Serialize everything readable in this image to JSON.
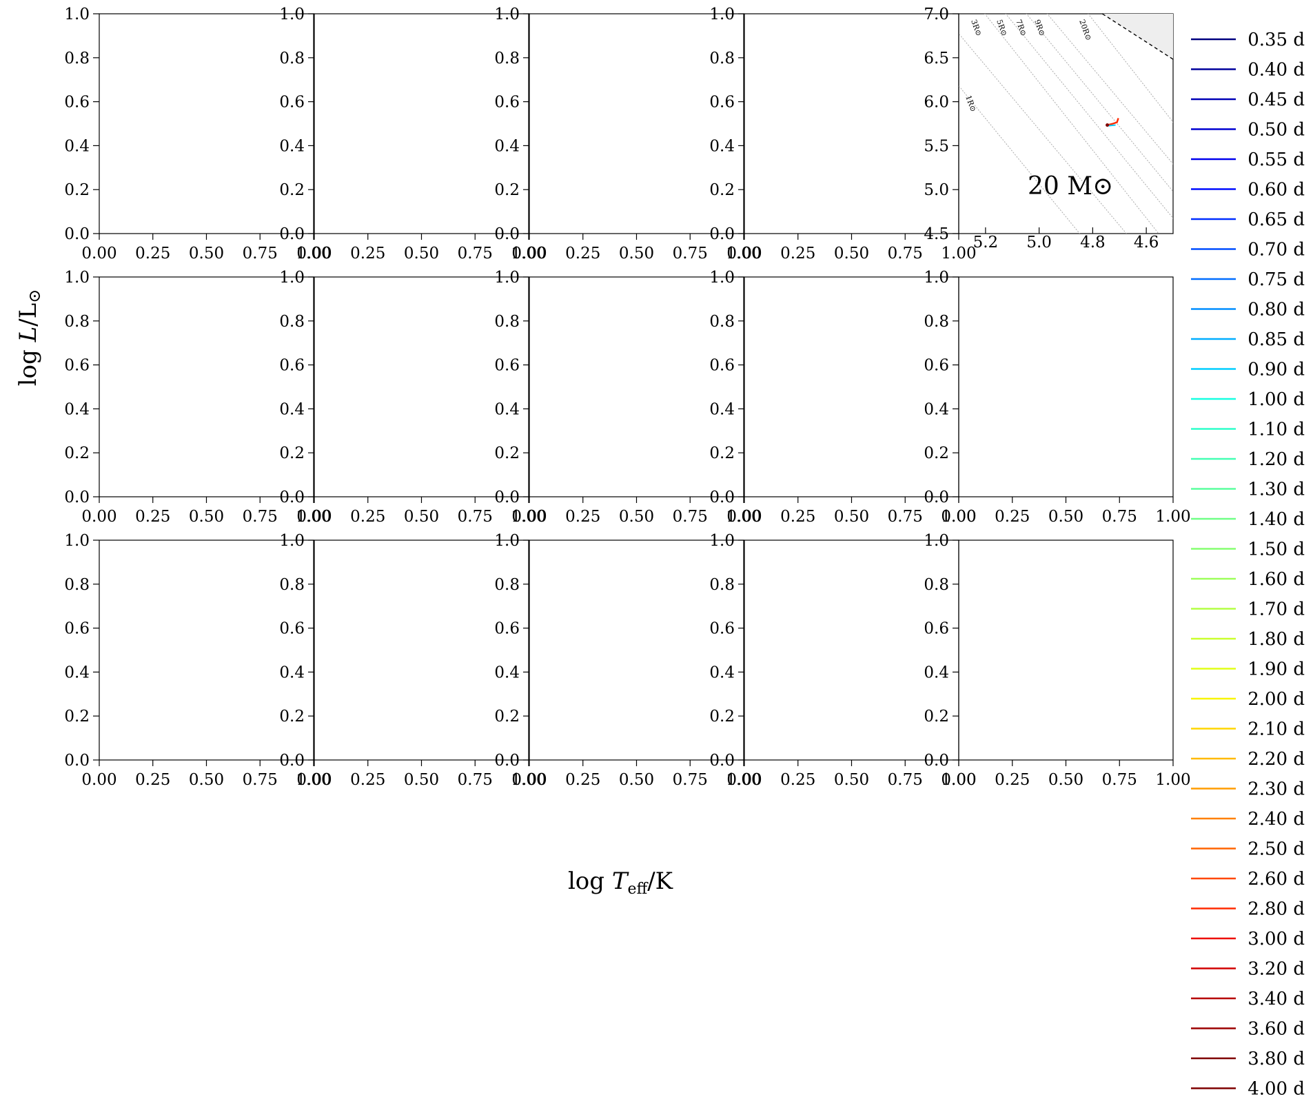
{
  "chart_data": {
    "type": "line",
    "xlabel": "log T_eff/K",
    "ylabel": "log L/L⊙",
    "legend": {
      "placement": "right",
      "entries": [
        "0.35 d",
        "0.40 d",
        "0.45 d",
        "0.50 d",
        "0.55 d",
        "0.60 d",
        "0.65 d",
        "0.70 d",
        "0.75 d",
        "0.80 d",
        "0.85 d",
        "0.90 d",
        "1.00 d",
        "1.10 d",
        "1.20 d",
        "1.30 d",
        "1.40 d",
        "1.50 d",
        "1.60 d",
        "1.70 d",
        "1.80 d",
        "1.90 d",
        "2.00 d",
        "2.10 d",
        "2.20 d",
        "2.30 d",
        "2.40 d",
        "2.50 d",
        "2.60 d",
        "2.80 d",
        "3.00 d",
        "3.20 d",
        "3.40 d",
        "3.60 d",
        "3.80 d",
        "4.00 d"
      ],
      "colors": [
        "#00007f",
        "#00009b",
        "#0000b6",
        "#0000d1",
        "#0000ed",
        "#000dff",
        "#002dff",
        "#004dff",
        "#006dff",
        "#008dff",
        "#00adff",
        "#00cdff",
        "#16ffe1",
        "#2dffca",
        "#43ffb3",
        "#5aff9d",
        "#70ff86",
        "#86ff70",
        "#9dff5a",
        "#b3ff43",
        "#caff2d",
        "#e1ff16",
        "#f8f500",
        "#ffd500",
        "#ffb900",
        "#ff9c00",
        "#ff8000",
        "#ff6300",
        "#ff4700",
        "#ff2a00",
        "#ed0e00",
        "#d10000",
        "#b60000",
        "#9b0000",
        "#7f0000",
        "#7f0000"
      ]
    },
    "panels": [
      {
        "row": 0,
        "col": 4,
        "label": "20 M⊙",
        "xlim": [
          5.3,
          4.5
        ],
        "ylim": [
          4.5,
          7.0
        ],
        "xticks": [
          "5.2",
          "5.0",
          "4.8",
          "4.6"
        ],
        "yticks": [
          "4.5",
          "5.0",
          "5.5",
          "6.0",
          "6.5",
          "7.0"
        ],
        "radius_labels": [
          "1R⊙",
          "3R⊙",
          "5R⊙",
          "7R⊙",
          "9R⊙",
          "20R⊙"
        ],
        "track_point": {
          "logTeff": 4.73,
          "logL": 5.75
        }
      }
    ],
    "empty_panel_ticks": {
      "xticks": [
        "0.00",
        "0.25",
        "0.50",
        "0.75",
        "1.00"
      ],
      "yticks": [
        "0.0",
        "0.2",
        "0.4",
        "0.6",
        "0.8",
        "1.0"
      ],
      "xlim": [
        0,
        1
      ],
      "ylim": [
        0,
        1
      ]
    },
    "grid": "off"
  }
}
